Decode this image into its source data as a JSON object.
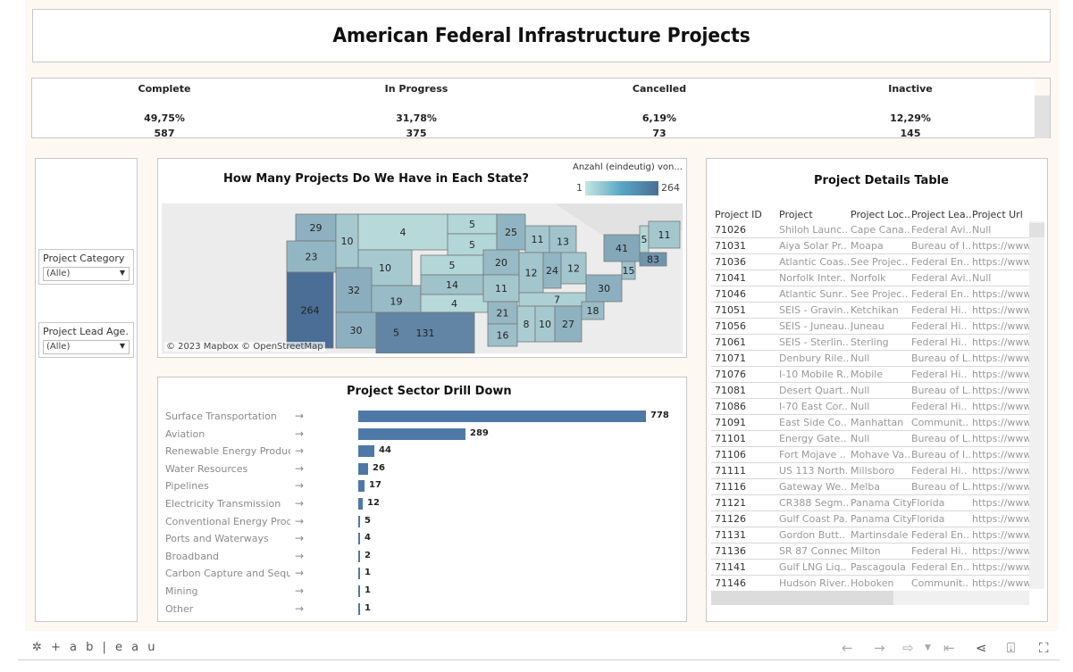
{
  "dashboard": {
    "title": "American Federal Infrastructure Projects"
  },
  "kpis": [
    {
      "label": "Complete",
      "percent": "49,75%",
      "count": "587"
    },
    {
      "label": "In Progress",
      "percent": "31,78%",
      "count": "375"
    },
    {
      "label": "Cancelled",
      "percent": "6,19%",
      "count": "73"
    },
    {
      "label": "Inactive",
      "percent": "12,29%",
      "count": "145"
    }
  ],
  "filters": [
    {
      "label": "Project Category",
      "value": "(Alle)"
    },
    {
      "label": "Project Lead Age...",
      "value": "(Alle)"
    }
  ],
  "map": {
    "title": "How Many Projects Do We Have in Each State?",
    "legend_title": "Anzahl (eindeutig) von...",
    "legend_min": "1",
    "legend_max": "264",
    "credit": "© 2023 Mapbox  © OpenStreetMap",
    "colors": {
      "low": "#c4e6e2",
      "mid": "#58a6c2",
      "high": "#4a6e96"
    },
    "states": [
      {
        "state": "WA",
        "value": 29
      },
      {
        "state": "OR",
        "value": 23
      },
      {
        "state": "CA",
        "value": 264
      },
      {
        "state": "ID",
        "value": 10
      },
      {
        "state": "MT",
        "value": 4
      },
      {
        "state": "WY",
        "value": 10
      },
      {
        "state": "UT",
        "value": 32
      },
      {
        "state": "CO",
        "value": 19
      },
      {
        "state": "AZ",
        "value": 30
      },
      {
        "state": "NM",
        "value": 5
      },
      {
        "state": "ND",
        "value": 5
      },
      {
        "state": "SD",
        "value": 5
      },
      {
        "state": "NE",
        "value": 5
      },
      {
        "state": "KS",
        "value": 14
      },
      {
        "state": "OK",
        "value": 4
      },
      {
        "state": "TX",
        "value": 131
      },
      {
        "state": "MN",
        "value": 25
      },
      {
        "state": "IA",
        "value": 20
      },
      {
        "state": "MO",
        "value": 11
      },
      {
        "state": "AR",
        "value": 21
      },
      {
        "state": "LA",
        "value": 16
      },
      {
        "state": "WI",
        "value": 11
      },
      {
        "state": "IL",
        "value": 12
      },
      {
        "state": "MI",
        "value": 13
      },
      {
        "state": "IN",
        "value": 24
      },
      {
        "state": "OH",
        "value": 12
      },
      {
        "state": "KY",
        "value": 7
      },
      {
        "state": "MS",
        "value": 8
      },
      {
        "state": "AL",
        "value": 10
      },
      {
        "state": "GA",
        "value": 27
      },
      {
        "state": "SC",
        "value": 18
      },
      {
        "state": "VA",
        "value": 30
      },
      {
        "state": "NY",
        "value": 41
      },
      {
        "state": "VT",
        "value": 5
      },
      {
        "state": "ME",
        "value": 11
      },
      {
        "state": "MA",
        "value": 83
      },
      {
        "state": "NJ",
        "value": 15
      }
    ]
  },
  "sector_chart": {
    "title": "Project Sector Drill Down",
    "bar_color": "#4e79a7",
    "arrow_glyph": "→"
  },
  "chart_data": {
    "type": "bar",
    "title": "Project Sector Drill Down",
    "orientation": "horizontal",
    "categories": [
      "Surface Transportation",
      "Aviation",
      "Renewable Energy Produc..",
      "Water Resources",
      "Pipelines",
      "Electricity Transmission",
      "Conventional Energy Prod..",
      "Ports and Waterways",
      "Broadband",
      "Carbon Capture and Sequ..",
      "Mining",
      "Other"
    ],
    "values": [
      778,
      289,
      44,
      26,
      17,
      12,
      5,
      4,
      2,
      1,
      1,
      1
    ],
    "xlabel": "",
    "ylabel": "",
    "xlim": [
      0,
      778
    ],
    "grid": false
  },
  "table": {
    "title": "Project Details Table",
    "columns": [
      "Project ID",
      "Project",
      "Project Loc..",
      "Project Lea..",
      "Project Url"
    ],
    "rows": [
      [
        "71026",
        "Shiloh Launc..",
        "Cape Cana..",
        "Federal Avi..",
        "Null"
      ],
      [
        "71031",
        "Aiya Solar Pr..",
        "Moapa",
        "Bureau of I..",
        "https://www"
      ],
      [
        "71036",
        "Atlantic Coas..",
        "See Projec..",
        "Federal En..",
        "https://www"
      ],
      [
        "71041",
        "Norfolk Inter..",
        "Norfolk",
        "Federal Avi..",
        "Null"
      ],
      [
        "71046",
        "Atlantic Sunr..",
        "See Projec..",
        "Federal En..",
        "https://www"
      ],
      [
        "71051",
        "SEIS - Gravin..",
        "Ketchikan",
        "Federal Hi..",
        "https://www"
      ],
      [
        "71056",
        "SEIS - Juneau..",
        "Juneau",
        "Federal Hi..",
        "https://www"
      ],
      [
        "71061",
        "SEIS - Sterlin..",
        "Sterling",
        "Federal Hi..",
        "https://www"
      ],
      [
        "71071",
        "Denbury Rile..",
        "Null",
        "Bureau of L..",
        "https://www"
      ],
      [
        "71076",
        "I-10 Mobile R..",
        "Mobile",
        "Federal Hi..",
        "https://www"
      ],
      [
        "71081",
        "Desert Quart..",
        "Null",
        "Bureau of L..",
        "https://www"
      ],
      [
        "71086",
        "I-70 East Cor..",
        "Null",
        "Federal Hi..",
        "https://www"
      ],
      [
        "71091",
        "East Side Co..",
        "Manhattan",
        "Communit..",
        "https://www"
      ],
      [
        "71101",
        "Energy Gate..",
        "Null",
        "Bureau of L..",
        "https://www"
      ],
      [
        "71106",
        "Fort Mojave ..",
        "Mohave Va..",
        "Bureau of I..",
        "https://www"
      ],
      [
        "71111",
        "US 113 North..",
        "Millsboro",
        "Federal Hi..",
        "https://www"
      ],
      [
        "71116",
        "Gateway We..",
        "Melba",
        "Bureau of L..",
        "https://www"
      ],
      [
        "71121",
        "CR388 Segm..",
        "Panama City",
        "Florida",
        "https://www"
      ],
      [
        "71126",
        "Gulf Coast Pa..",
        "Panama City",
        "Florida",
        "https://www"
      ],
      [
        "71131",
        "Gordon Butt..",
        "Martinsdale",
        "Federal En..",
        "https://www"
      ],
      [
        "71136",
        "SR 87 Connec..",
        "Milton",
        "Federal Hi..",
        "https://www"
      ],
      [
        "71141",
        "Gulf LNG Liq..",
        "Pascagoula",
        "Federal En..",
        "https://www"
      ],
      [
        "71146",
        "Hudson River..",
        "Hoboken",
        "Communit..",
        "https://www"
      ]
    ]
  },
  "toolbar": {
    "logo": "+ a b | e a u",
    "icons": [
      "undo-icon",
      "redo-icon",
      "revert-icon",
      "dropdown-icon",
      "reset-icon",
      "share-icon",
      "download-icon",
      "fullscreen-icon"
    ]
  }
}
